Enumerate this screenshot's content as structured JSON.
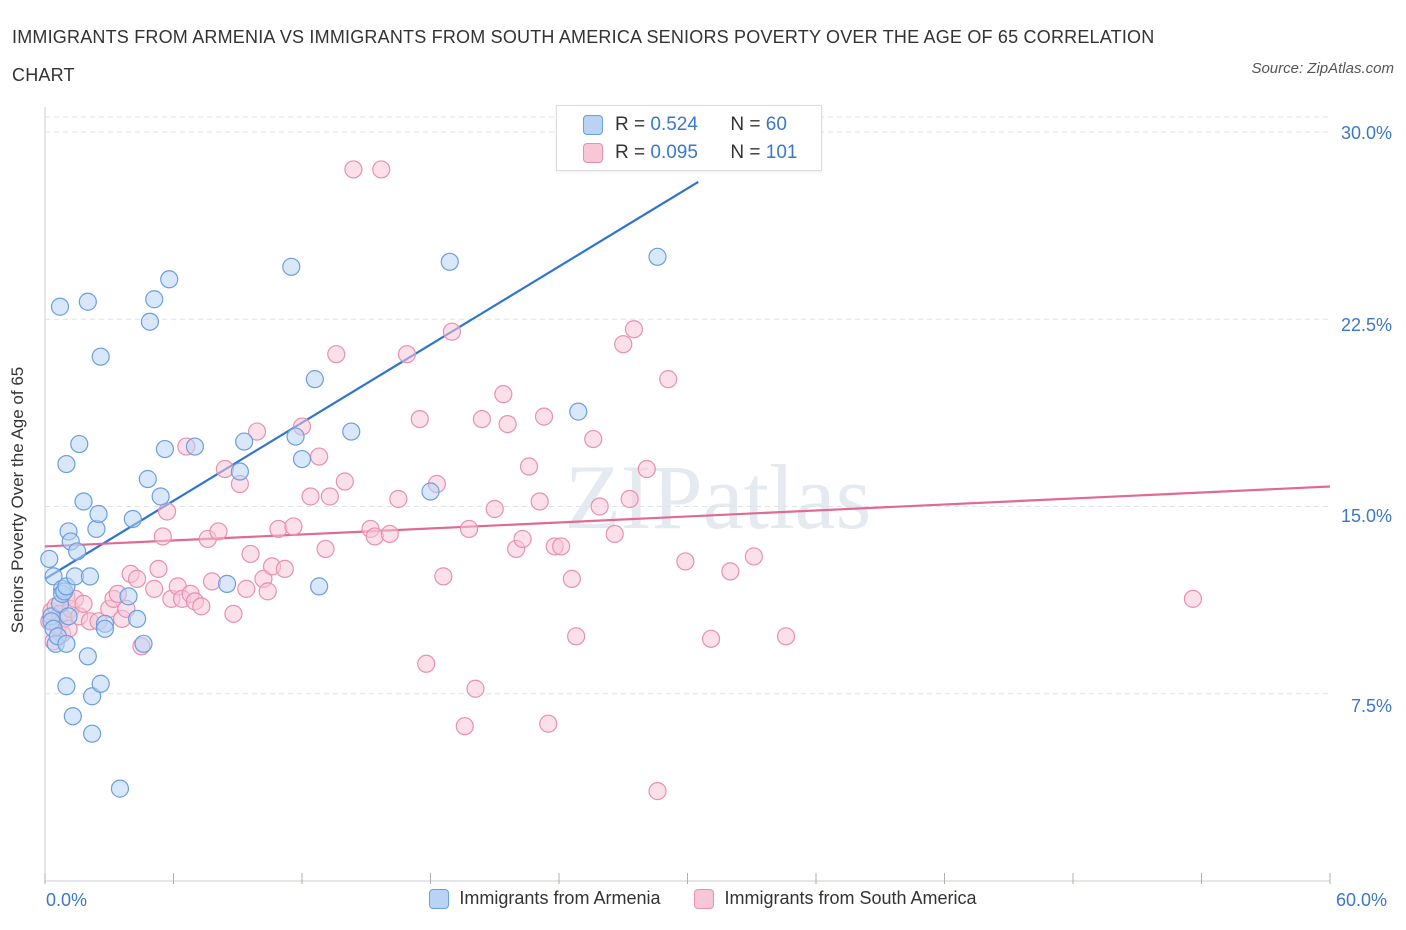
{
  "title": "IMMIGRANTS FROM ARMENIA VS IMMIGRANTS FROM SOUTH AMERICA SENIORS POVERTY OVER THE AGE OF 65 CORRELATION CHART",
  "source": "Source: ZipAtlas.com",
  "watermark": "ZIPatlas",
  "colors": {
    "armenia": "#6a9fe0",
    "armenia_fill": "#b8d3f4",
    "armenia_line": "#2e74d0",
    "south_america": "#ea8fb1",
    "south_america_fill": "#f7c6d7",
    "south_america_line": "#e06a95",
    "axis_text": "#3a78c9",
    "grid": "#dde3ea"
  },
  "stats": {
    "armenia": {
      "r_label": "R =",
      "r": "0.524",
      "n_label": "N =",
      "n": "60"
    },
    "south_america": {
      "r_label": "R =",
      "r": "0.095",
      "n_label": "N =",
      "n": "101"
    }
  },
  "chart_data": {
    "type": "scatter",
    "title": "IMMIGRANTS FROM ARMENIA VS IMMIGRANTS FROM SOUTH AMERICA SENIORS POVERTY OVER THE AGE OF 65 CORRELATION CHART",
    "xlabel": "",
    "ylabel": "Seniors Poverty Over the Age of 65",
    "xlim": [
      0,
      60
    ],
    "ylim": [
      0,
      31
    ],
    "x_tick_labels": [
      "0.0%",
      "60.0%"
    ],
    "y_ticks": [
      7.5,
      15.0,
      22.5,
      30.0
    ],
    "y_tick_labels": [
      "7.5%",
      "15.0%",
      "22.5%",
      "30.0%"
    ],
    "grid": true,
    "legend_position": "bottom",
    "series": [
      {
        "name": "Immigrants from Armenia",
        "trend": {
          "x": [
            0,
            30.5
          ],
          "y": [
            12.1,
            28.0
          ]
        },
        "points": [
          [
            0.2,
            12.9
          ],
          [
            0.3,
            10.6
          ],
          [
            0.3,
            10.4
          ],
          [
            0.4,
            12.2
          ],
          [
            0.4,
            10.1
          ],
          [
            0.5,
            9.5
          ],
          [
            0.6,
            9.8
          ],
          [
            0.7,
            11.1
          ],
          [
            0.8,
            11.7
          ],
          [
            0.8,
            11.5
          ],
          [
            0.9,
            11.6
          ],
          [
            1.0,
            9.5
          ],
          [
            1.0,
            11.8
          ],
          [
            1.1,
            10.6
          ],
          [
            0.7,
            23.0
          ],
          [
            1.0,
            7.8
          ],
          [
            1.0,
            16.7
          ],
          [
            1.1,
            14.0
          ],
          [
            1.2,
            13.6
          ],
          [
            1.3,
            6.6
          ],
          [
            1.4,
            12.2
          ],
          [
            1.5,
            13.2
          ],
          [
            1.6,
            17.5
          ],
          [
            1.8,
            15.2
          ],
          [
            2.0,
            9.0
          ],
          [
            2.1,
            12.2
          ],
          [
            2.0,
            23.2
          ],
          [
            2.2,
            7.4
          ],
          [
            2.2,
            5.9
          ],
          [
            2.4,
            14.1
          ],
          [
            2.5,
            14.7
          ],
          [
            2.6,
            7.9
          ],
          [
            2.6,
            21.0
          ],
          [
            2.8,
            10.3
          ],
          [
            2.8,
            10.1
          ],
          [
            3.5,
            3.7
          ],
          [
            3.9,
            11.4
          ],
          [
            4.1,
            14.5
          ],
          [
            4.3,
            10.5
          ],
          [
            4.6,
            9.5
          ],
          [
            4.8,
            16.1
          ],
          [
            4.9,
            22.4
          ],
          [
            5.1,
            23.3
          ],
          [
            5.4,
            15.4
          ],
          [
            5.6,
            17.3
          ],
          [
            5.8,
            24.1
          ],
          [
            7.0,
            17.4
          ],
          [
            8.5,
            11.9
          ],
          [
            9.1,
            16.4
          ],
          [
            9.3,
            17.6
          ],
          [
            11.5,
            24.6
          ],
          [
            11.7,
            17.8
          ],
          [
            12.0,
            16.9
          ],
          [
            12.6,
            20.1
          ],
          [
            12.8,
            11.8
          ],
          [
            14.3,
            18.0
          ],
          [
            18.0,
            15.6
          ],
          [
            18.9,
            24.8
          ],
          [
            24.9,
            18.8
          ],
          [
            28.6,
            25.0
          ]
        ]
      },
      {
        "name": "Immigrants from South America",
        "trend": {
          "x": [
            0,
            60
          ],
          "y": [
            13.4,
            15.8
          ]
        },
        "points": [
          [
            0.2,
            10.4
          ],
          [
            0.3,
            10.8
          ],
          [
            0.4,
            9.6
          ],
          [
            0.5,
            11.0
          ],
          [
            0.6,
            10.2
          ],
          [
            0.7,
            10.7
          ],
          [
            0.8,
            9.9
          ],
          [
            0.9,
            10.5
          ],
          [
            1.0,
            11.4
          ],
          [
            1.1,
            10.1
          ],
          [
            1.2,
            10.9
          ],
          [
            1.4,
            11.3
          ],
          [
            1.6,
            10.6
          ],
          [
            1.8,
            11.1
          ],
          [
            2.1,
            10.4
          ],
          [
            2.5,
            10.4
          ],
          [
            3.0,
            10.9
          ],
          [
            3.2,
            11.3
          ],
          [
            3.4,
            11.5
          ],
          [
            3.6,
            10.5
          ],
          [
            3.8,
            10.9
          ],
          [
            4.0,
            12.3
          ],
          [
            4.3,
            12.1
          ],
          [
            4.5,
            9.4
          ],
          [
            5.1,
            11.7
          ],
          [
            5.3,
            12.5
          ],
          [
            5.5,
            13.8
          ],
          [
            5.7,
            14.8
          ],
          [
            5.9,
            11.3
          ],
          [
            6.2,
            11.8
          ],
          [
            6.4,
            11.3
          ],
          [
            6.6,
            17.4
          ],
          [
            6.8,
            11.5
          ],
          [
            7.0,
            11.2
          ],
          [
            7.3,
            11.0
          ],
          [
            7.6,
            13.7
          ],
          [
            7.8,
            12.0
          ],
          [
            8.1,
            14.0
          ],
          [
            8.4,
            16.5
          ],
          [
            8.8,
            10.7
          ],
          [
            9.1,
            15.9
          ],
          [
            9.4,
            11.7
          ],
          [
            9.6,
            13.1
          ],
          [
            9.9,
            18.0
          ],
          [
            10.2,
            12.1
          ],
          [
            10.4,
            11.6
          ],
          [
            10.6,
            12.6
          ],
          [
            10.9,
            14.1
          ],
          [
            11.2,
            12.5
          ],
          [
            11.6,
            14.2
          ],
          [
            12.0,
            18.2
          ],
          [
            12.4,
            15.4
          ],
          [
            12.8,
            17.0
          ],
          [
            13.1,
            13.3
          ],
          [
            13.3,
            15.4
          ],
          [
            13.6,
            21.1
          ],
          [
            14.0,
            16.0
          ],
          [
            14.4,
            28.5
          ],
          [
            15.2,
            14.1
          ],
          [
            15.4,
            13.8
          ],
          [
            15.7,
            28.5
          ],
          [
            16.1,
            13.9
          ],
          [
            16.5,
            15.3
          ],
          [
            16.9,
            21.1
          ],
          [
            17.5,
            18.5
          ],
          [
            17.8,
            8.7
          ],
          [
            18.3,
            15.9
          ],
          [
            18.6,
            12.2
          ],
          [
            19.0,
            22.0
          ],
          [
            19.6,
            6.2
          ],
          [
            19.8,
            14.1
          ],
          [
            20.1,
            7.7
          ],
          [
            20.4,
            18.5
          ],
          [
            21.0,
            14.9
          ],
          [
            21.4,
            19.5
          ],
          [
            21.6,
            18.3
          ],
          [
            22.0,
            13.3
          ],
          [
            22.3,
            13.7
          ],
          [
            22.6,
            16.6
          ],
          [
            23.1,
            15.2
          ],
          [
            23.3,
            18.6
          ],
          [
            23.5,
            6.3
          ],
          [
            23.8,
            13.4
          ],
          [
            24.1,
            13.4
          ],
          [
            24.6,
            12.1
          ],
          [
            24.8,
            9.8
          ],
          [
            25.6,
            17.7
          ],
          [
            25.9,
            15.0
          ],
          [
            26.6,
            13.9
          ],
          [
            27.0,
            21.5
          ],
          [
            27.3,
            15.3
          ],
          [
            27.5,
            22.1
          ],
          [
            28.1,
            16.5
          ],
          [
            28.6,
            3.6
          ],
          [
            29.1,
            20.1
          ],
          [
            29.9,
            12.8
          ],
          [
            31.1,
            9.7
          ],
          [
            32.0,
            12.4
          ],
          [
            33.1,
            13.0
          ],
          [
            34.6,
            9.8
          ],
          [
            53.6,
            11.3
          ]
        ]
      }
    ]
  },
  "legend": {
    "armenia_label": "Immigrants from Armenia",
    "south_america_label": "Immigrants from South America"
  }
}
